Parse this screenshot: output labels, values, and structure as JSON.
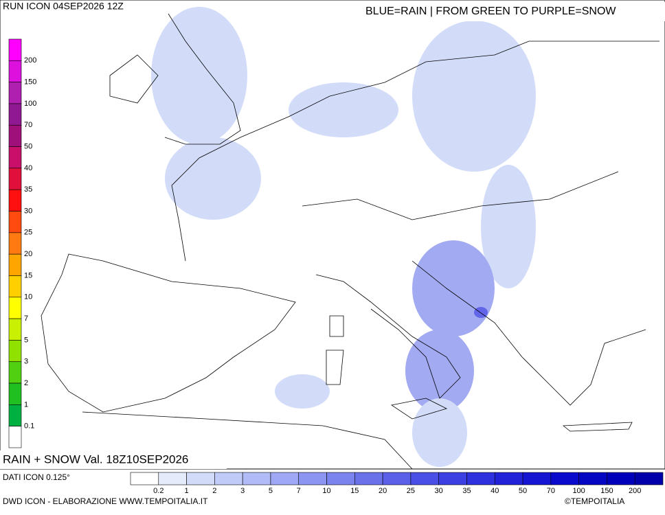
{
  "header": {
    "run": "RUN ICON 04SEP2026 12Z",
    "legend_text": "BLUE=RAIN | FROM GREEN TO PURPLE=SNOW"
  },
  "snow_scale": {
    "labels": [
      "200",
      "150",
      "100",
      "70",
      "50",
      "40",
      "35",
      "30",
      "25",
      "20",
      "15",
      "10",
      "7",
      "5",
      "3",
      "2",
      "1",
      "0.1"
    ],
    "colors": [
      "#ff00ff",
      "#dd11dd",
      "#b020b0",
      "#901890",
      "#a0107a",
      "#c8106a",
      "#e0103a",
      "#ff1010",
      "#ff4a10",
      "#ff7a10",
      "#ffa500",
      "#ffd000",
      "#ffff00",
      "#c8f000",
      "#90e000",
      "#50d010",
      "#20c020",
      "#00b040",
      "#ffffff"
    ]
  },
  "rain_scale": {
    "labels": [
      "0.2",
      "1",
      "2",
      "3",
      "5",
      "7",
      "10",
      "15",
      "20",
      "25",
      "30",
      "35",
      "40",
      "50",
      "70",
      "100",
      "150",
      "200"
    ],
    "colors": [
      "#ffffff",
      "#e4ebfb",
      "#d2dcf9",
      "#c0cbf8",
      "#b0bbf7",
      "#9ea8f4",
      "#8c95f1",
      "#7b84ee",
      "#6a72ea",
      "#5a60e8",
      "#4a4fe5",
      "#3c3fe2",
      "#2f30de",
      "#2222d9",
      "#1515d2",
      "#0a0acc",
      "#0505c4",
      "#0000bb",
      "#0000aa"
    ]
  },
  "footer": {
    "title": "RAIN + SNOW Val. 18Z10SEP2026",
    "source": "DATI ICON 0.125°",
    "credit": "DWD ICON - ELABORAZIONE WWW.TEMPOITALIA.IT",
    "copyright": "©TEMPOITALIA"
  }
}
